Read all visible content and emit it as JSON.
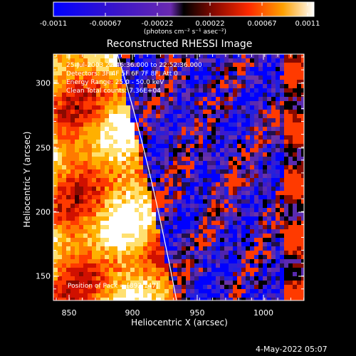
{
  "colorbar": {
    "ticks": [
      "-0.0011",
      "-0.00067",
      "-0.00022",
      "0.00022",
      "0.00067",
      "0.0011"
    ],
    "unit_label": "(photons cm⁻² s⁻¹ asec⁻²)"
  },
  "plot": {
    "title": "Reconstructed RHESSI Image",
    "info_lines": [
      "25-Jul-2003 22:46:36.000 to 22:52:36.000",
      "Detectors: 3F 4F 5F 6F 7F 8F, Att 0",
      "Energy Range: 25.0 - 50.0 keV",
      "Clean    Total counts: 7.36E+04"
    ],
    "xlabel": "Heliocentric X (arcsec)",
    "ylabel": "Heliocentric Y (arcsec)",
    "xticks": [
      "850",
      "900",
      "950",
      "1000"
    ],
    "yticks": [
      "300",
      "250",
      "200",
      "150"
    ],
    "position_label": "Position of Pack = [892,147]"
  },
  "footer": {
    "date": "4-May-2022 05:07"
  }
}
